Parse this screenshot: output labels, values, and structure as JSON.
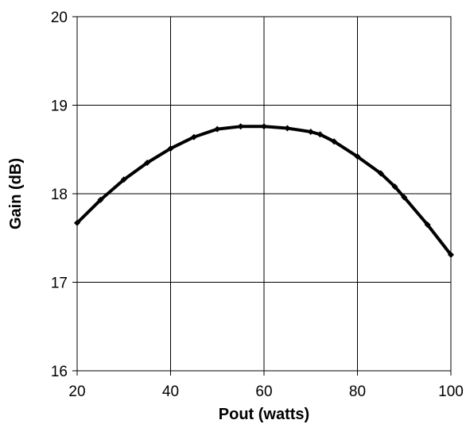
{
  "chart_data": {
    "type": "line",
    "title": "",
    "xlabel": "Pout (watts)",
    "ylabel": "Gain (dB)",
    "xlim": [
      20,
      100
    ],
    "ylim": [
      16,
      20
    ],
    "xticks": [
      "20",
      "40",
      "60",
      "80",
      "100"
    ],
    "yticks": [
      "16",
      "17",
      "18",
      "19",
      "20"
    ],
    "grid": true,
    "legend": "none",
    "series": [
      {
        "color": "#000000",
        "x": [
          20,
          25,
          30,
          35,
          40,
          45,
          50,
          55,
          60,
          65,
          70,
          72,
          75,
          80,
          85,
          88,
          90,
          95,
          100
        ],
        "y": [
          17.67,
          17.93,
          18.16,
          18.35,
          18.51,
          18.64,
          18.73,
          18.76,
          18.76,
          18.74,
          18.7,
          18.67,
          18.59,
          18.42,
          18.23,
          18.08,
          17.96,
          17.65,
          17.31
        ]
      }
    ]
  }
}
